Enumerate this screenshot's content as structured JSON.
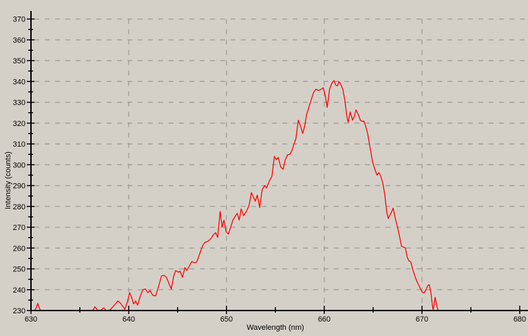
{
  "chart": {
    "xlabel": "Wavelength (nm)",
    "ylabel": "Intensity (counts)",
    "x_ticks": [
      630,
      640,
      650,
      660,
      670,
      680
    ],
    "x_minor_ticks": [
      635,
      645,
      655,
      665,
      675
    ],
    "y_ticks": [
      230,
      240,
      250,
      260,
      270,
      280,
      290,
      300,
      310,
      320,
      330,
      340,
      350,
      360,
      370
    ],
    "y_minor_ticks": [
      235,
      245,
      255,
      265,
      275,
      285,
      295,
      305,
      315,
      325,
      335,
      345,
      355,
      365
    ],
    "x_gridlines": [
      640,
      650,
      660,
      670
    ],
    "y_gridlines": [
      240,
      250,
      260,
      270,
      280,
      290,
      300,
      310,
      320,
      330,
      340,
      350,
      360,
      370
    ]
  },
  "colors": {
    "background": "#d4d0c8",
    "grid": "#9e9c94",
    "axis": "#000000",
    "line": "#ff0000",
    "text": "#000000"
  },
  "chart_data": {
    "type": "line",
    "title": "",
    "xlabel": "Wavelength (nm)",
    "ylabel": "Intensity (counts)",
    "xlim": [
      630,
      680
    ],
    "ylim": [
      230,
      370
    ],
    "grid": "dashed",
    "legend": "none",
    "series": [
      {
        "color": "#ff0000",
        "points": [
          [
            630.0,
            230
          ],
          [
            630.4,
            230
          ],
          [
            630.55,
            231.6
          ],
          [
            630.7,
            233.4
          ],
          [
            630.85,
            231.2
          ],
          [
            631.0,
            230
          ],
          [
            631.5,
            230
          ],
          [
            632.5,
            230
          ],
          [
            633.5,
            230
          ],
          [
            634.5,
            230
          ],
          [
            635.5,
            230
          ],
          [
            636.3,
            230
          ],
          [
            636.55,
            231.8
          ],
          [
            636.8,
            230.2
          ],
          [
            637.1,
            230
          ],
          [
            637.45,
            231.3
          ],
          [
            637.7,
            230
          ],
          [
            638.1,
            230.3
          ],
          [
            638.5,
            232.4
          ],
          [
            638.9,
            234.6
          ],
          [
            639.15,
            233.6
          ],
          [
            639.4,
            232.0
          ],
          [
            639.6,
            230.6
          ],
          [
            639.85,
            234.0
          ],
          [
            640.1,
            238.6
          ],
          [
            640.3,
            236.2
          ],
          [
            640.5,
            233.2
          ],
          [
            640.7,
            234.6
          ],
          [
            640.9,
            232.6
          ],
          [
            641.2,
            237.0
          ],
          [
            641.45,
            240.0
          ],
          [
            641.7,
            240.3
          ],
          [
            641.95,
            238.6
          ],
          [
            642.2,
            239.6
          ],
          [
            642.45,
            237.3
          ],
          [
            642.75,
            237.0
          ],
          [
            643.05,
            241.5
          ],
          [
            643.35,
            246.6
          ],
          [
            643.6,
            246.9
          ],
          [
            643.85,
            246.0
          ],
          [
            644.1,
            243.2
          ],
          [
            644.35,
            240.3
          ],
          [
            644.6,
            246.5
          ],
          [
            644.8,
            249.2
          ],
          [
            645.05,
            248.4
          ],
          [
            645.25,
            248.9
          ],
          [
            645.5,
            245.9
          ],
          [
            645.75,
            250.6
          ],
          [
            645.95,
            249.3
          ],
          [
            646.2,
            251.3
          ],
          [
            646.45,
            253.5
          ],
          [
            646.7,
            252.9
          ],
          [
            646.95,
            253.2
          ],
          [
            647.3,
            257.8
          ],
          [
            647.55,
            261.0
          ],
          [
            647.8,
            262.8
          ],
          [
            648.1,
            263.2
          ],
          [
            648.4,
            264.5
          ],
          [
            648.65,
            266.3
          ],
          [
            648.9,
            267.4
          ],
          [
            649.1,
            265.1
          ],
          [
            649.35,
            277.6
          ],
          [
            649.55,
            270.1
          ],
          [
            649.75,
            273.4
          ],
          [
            649.95,
            268.0
          ],
          [
            650.2,
            266.7
          ],
          [
            650.45,
            270.3
          ],
          [
            650.65,
            273.3
          ],
          [
            650.9,
            275.3
          ],
          [
            651.1,
            276.7
          ],
          [
            651.3,
            273.4
          ],
          [
            651.5,
            278.8
          ],
          [
            651.75,
            275.6
          ],
          [
            652.0,
            277.3
          ],
          [
            652.3,
            280.3
          ],
          [
            652.55,
            286.6
          ],
          [
            652.95,
            282.5
          ],
          [
            653.15,
            285.4
          ],
          [
            653.4,
            279.5
          ],
          [
            653.65,
            288.0
          ],
          [
            653.9,
            290.0
          ],
          [
            654.1,
            288.8
          ],
          [
            654.4,
            292.3
          ],
          [
            654.65,
            294.5
          ],
          [
            654.9,
            304.0
          ],
          [
            655.1,
            302.4
          ],
          [
            655.3,
            303.5
          ],
          [
            655.55,
            298.8
          ],
          [
            655.8,
            297.9
          ],
          [
            656.0,
            302.2
          ],
          [
            656.25,
            304.8
          ],
          [
            656.5,
            305.1
          ],
          [
            656.7,
            306.8
          ],
          [
            656.9,
            309.8
          ],
          [
            657.1,
            312.5
          ],
          [
            657.35,
            321.4
          ],
          [
            657.6,
            318.3
          ],
          [
            657.8,
            315.0
          ],
          [
            658.0,
            318.6
          ],
          [
            658.2,
            324.0
          ],
          [
            658.45,
            328.0
          ],
          [
            658.7,
            331.6
          ],
          [
            658.9,
            334.6
          ],
          [
            659.15,
            336.3
          ],
          [
            659.4,
            335.7
          ],
          [
            659.65,
            336.1
          ],
          [
            659.9,
            337.0
          ],
          [
            660.1,
            333.3
          ],
          [
            660.3,
            327.5
          ],
          [
            660.55,
            336.3
          ],
          [
            660.8,
            339.4
          ],
          [
            661.0,
            340.4
          ],
          [
            661.2,
            338.2
          ],
          [
            661.35,
            337.9
          ],
          [
            661.5,
            339.9
          ],
          [
            661.65,
            339.1
          ],
          [
            661.9,
            336.3
          ],
          [
            662.1,
            331.3
          ],
          [
            662.3,
            323.4
          ],
          [
            662.45,
            320.4
          ],
          [
            662.65,
            325.4
          ],
          [
            662.9,
            321.4
          ],
          [
            663.1,
            323.4
          ],
          [
            663.25,
            326.4
          ],
          [
            663.5,
            324.0
          ],
          [
            663.7,
            321.4
          ],
          [
            663.9,
            320.8
          ],
          [
            664.05,
            321.0
          ],
          [
            664.25,
            318.3
          ],
          [
            664.45,
            314.8
          ],
          [
            664.7,
            308.0
          ],
          [
            664.95,
            301.2
          ],
          [
            665.2,
            297.6
          ],
          [
            665.4,
            295.0
          ],
          [
            665.6,
            296.2
          ],
          [
            665.8,
            294.3
          ],
          [
            666.0,
            291.0
          ],
          [
            666.2,
            285.5
          ],
          [
            666.4,
            277.0
          ],
          [
            666.55,
            274.2
          ],
          [
            666.7,
            275.6
          ],
          [
            666.9,
            277.4
          ],
          [
            667.05,
            279.2
          ],
          [
            667.25,
            274.6
          ],
          [
            667.5,
            270.0
          ],
          [
            667.7,
            265.8
          ],
          [
            667.9,
            260.9
          ],
          [
            668.1,
            260.5
          ],
          [
            668.3,
            260.1
          ],
          [
            668.5,
            255.4
          ],
          [
            668.7,
            253.7
          ],
          [
            668.85,
            253.4
          ],
          [
            669.05,
            249.9
          ],
          [
            669.25,
            246.8
          ],
          [
            669.45,
            244.3
          ],
          [
            669.65,
            242.4
          ],
          [
            669.85,
            240.3
          ],
          [
            670.05,
            238.7
          ],
          [
            670.2,
            238.4
          ],
          [
            670.4,
            239.8
          ],
          [
            670.6,
            242.0
          ],
          [
            670.75,
            242.4
          ],
          [
            670.9,
            238.8
          ],
          [
            671.05,
            233.0
          ],
          [
            671.15,
            230.2
          ],
          [
            671.35,
            236.3
          ],
          [
            671.5,
            232.5
          ],
          [
            671.65,
            230.0
          ],
          [
            672.0,
            230.0
          ]
        ]
      }
    ]
  }
}
